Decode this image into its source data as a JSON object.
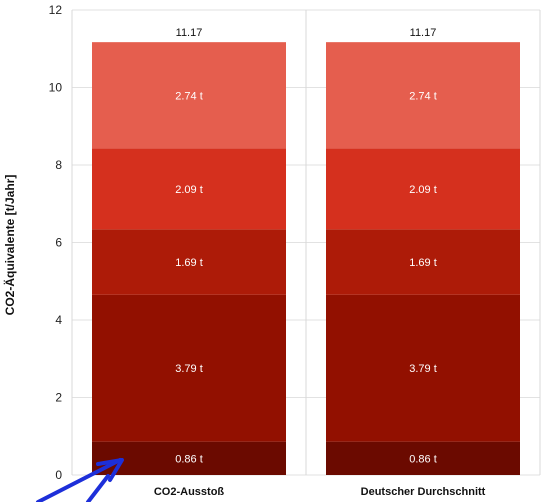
{
  "chart_data": {
    "type": "bar",
    "stacked": true,
    "categories": [
      "CO2-Ausstoß",
      "Deutscher Durchschnitt"
    ],
    "ylabel": "CO2-Äquivalente [t/Jahr]",
    "ylim": [
      0,
      12
    ],
    "yticks": [
      "0",
      "2",
      "4",
      "6",
      "8",
      "10",
      "12"
    ],
    "grid": true,
    "totals": [
      "11.17",
      "11.17"
    ],
    "series": [
      {
        "values": [
          0.86,
          0.86
        ],
        "labels": [
          "0.86 t",
          "0.86 t"
        ],
        "color": "#6b0a00"
      },
      {
        "values": [
          3.79,
          3.79
        ],
        "labels": [
          "3.79 t",
          "3.79 t"
        ],
        "color": "#921000"
      },
      {
        "values": [
          1.69,
          1.69
        ],
        "labels": [
          "1.69 t",
          "1.69 t"
        ],
        "color": "#ad1b08"
      },
      {
        "values": [
          2.09,
          2.09
        ],
        "labels": [
          "2.09 t",
          "2.09 t"
        ],
        "color": "#d5301e"
      },
      {
        "values": [
          2.74,
          2.74
        ],
        "labels": [
          "2.74 t",
          "2.74 t"
        ],
        "color": "#e55e4e"
      }
    ]
  },
  "annotation": {
    "color": "#1d2fd9"
  }
}
